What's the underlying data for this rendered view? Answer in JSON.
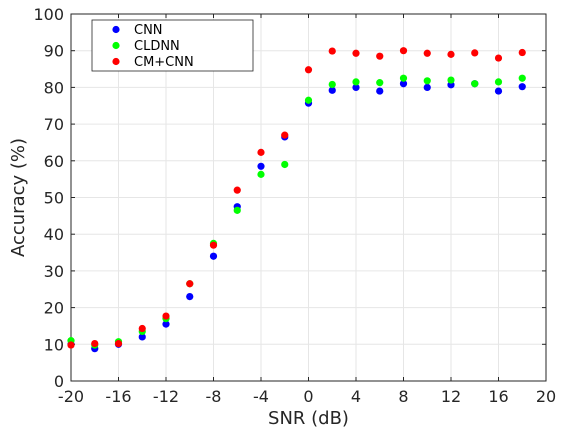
{
  "chart_data": {
    "type": "scatter",
    "title": "",
    "xlabel": "SNR (dB)",
    "ylabel": "Accuracy (%)",
    "xlim": [
      -20,
      20
    ],
    "ylim": [
      0,
      100
    ],
    "xticks": [
      "-20",
      "-16",
      "-12",
      "-8",
      "-4",
      "0",
      "4",
      "8",
      "12",
      "16",
      "20"
    ],
    "yticks": [
      "0",
      "10",
      "20",
      "30",
      "40",
      "50",
      "60",
      "70",
      "80",
      "90",
      "100"
    ],
    "grid": true,
    "legend_position": "top-left",
    "x": [
      -20,
      -18,
      -16,
      -14,
      -12,
      -10,
      -8,
      -6,
      -4,
      -2,
      0,
      2,
      4,
      6,
      8,
      10,
      12,
      14,
      16,
      18
    ],
    "series": [
      {
        "name": "CNN",
        "color": "#0000ff",
        "values": [
          10.0,
          8.8,
          10.0,
          12.0,
          15.5,
          23.0,
          34.0,
          47.5,
          58.5,
          66.5,
          75.7,
          79.2,
          80.0,
          79.0,
          81.0,
          80.0,
          80.7,
          81.0,
          79.0,
          80.2
        ]
      },
      {
        "name": "CLDNN",
        "color": "#00ff00",
        "values": [
          11.0,
          9.8,
          10.7,
          13.5,
          17.0,
          26.5,
          37.5,
          46.5,
          56.3,
          59.0,
          76.5,
          80.8,
          81.5,
          81.3,
          82.5,
          81.8,
          82.0,
          81.0,
          81.5,
          82.5
        ]
      },
      {
        "name": "CM+CNN",
        "color": "#ff0000",
        "values": [
          9.8,
          10.2,
          10.2,
          14.3,
          17.7,
          26.5,
          37.0,
          52.0,
          62.3,
          67.0,
          84.8,
          89.9,
          89.3,
          88.5,
          90.0,
          89.3,
          89.0,
          89.4,
          88.0,
          89.5
        ]
      }
    ]
  }
}
